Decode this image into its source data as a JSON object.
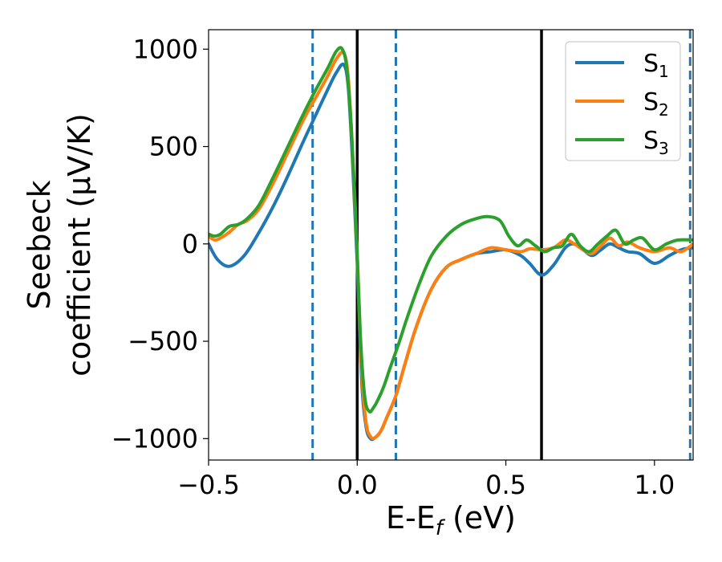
{
  "chart_data": {
    "type": "line",
    "xlabel": {
      "main": "E-E",
      "sub": "f",
      "rest": " (eV)"
    },
    "ylabel": {
      "line1": "Seebeck",
      "line2": "coefficient  (μV/K)"
    },
    "xlim": [
      -0.5,
      1.13
    ],
    "ylim": [
      -1110,
      1100
    ],
    "xticks": [
      -0.5,
      0.0,
      0.5,
      1.0
    ],
    "xtick_labels": [
      "−0.5",
      "0.0",
      "0.5",
      "1.0"
    ],
    "yticks": [
      1000,
      500,
      0,
      -500,
      -1000
    ],
    "ytick_labels": [
      "1000",
      "500",
      "0",
      "−500",
      "−1000"
    ],
    "grid": false,
    "legend_position": "top-right",
    "vlines": [
      {
        "x": -0.15,
        "style": "dashed",
        "color": "#1f77b4"
      },
      {
        "x": 0.0,
        "style": "solid",
        "color": "#000000"
      },
      {
        "x": 0.13,
        "style": "dashed",
        "color": "#1f77b4"
      },
      {
        "x": 0.62,
        "style": "solid",
        "color": "#000000"
      },
      {
        "x": 1.12,
        "style": "dashed",
        "color": "#1f77b4"
      }
    ],
    "series": [
      {
        "name": "S",
        "sub": "1",
        "color": "#1f77b4",
        "x": [
          -0.5,
          -0.47,
          -0.43,
          -0.38,
          -0.33,
          -0.28,
          -0.23,
          -0.18,
          -0.14,
          -0.1,
          -0.07,
          -0.045,
          -0.03,
          -0.015,
          0.0,
          0.015,
          0.03,
          0.045,
          0.06,
          0.08,
          0.1,
          0.13,
          0.16,
          0.2,
          0.25,
          0.3,
          0.35,
          0.4,
          0.45,
          0.5,
          0.55,
          0.58,
          0.62,
          0.66,
          0.7,
          0.73,
          0.76,
          0.79,
          0.82,
          0.85,
          0.88,
          0.91,
          0.95,
          1.0,
          1.05,
          1.09,
          1.13
        ],
        "y": [
          0,
          -80,
          -115,
          -60,
          60,
          200,
          360,
          530,
          660,
          790,
          880,
          920,
          800,
          400,
          -100,
          -700,
          -940,
          -1000,
          -995,
          -960,
          -890,
          -780,
          -620,
          -420,
          -230,
          -120,
          -80,
          -50,
          -40,
          -30,
          -60,
          -100,
          -160,
          -110,
          -20,
          0,
          -30,
          -60,
          -30,
          0,
          -20,
          -40,
          -50,
          -100,
          -60,
          -30,
          -20
        ]
      },
      {
        "name": "S",
        "sub": "2",
        "color": "#ff7f0e",
        "x": [
          -0.5,
          -0.48,
          -0.46,
          -0.43,
          -0.4,
          -0.37,
          -0.33,
          -0.28,
          -0.23,
          -0.18,
          -0.14,
          -0.1,
          -0.07,
          -0.045,
          -0.03,
          -0.015,
          0.0,
          0.015,
          0.03,
          0.045,
          0.06,
          0.08,
          0.1,
          0.13,
          0.16,
          0.2,
          0.25,
          0.3,
          0.35,
          0.4,
          0.45,
          0.5,
          0.55,
          0.58,
          0.62,
          0.66,
          0.7,
          0.73,
          0.76,
          0.79,
          0.82,
          0.85,
          0.88,
          0.91,
          0.95,
          1.0,
          1.05,
          1.09,
          1.13
        ],
        "y": [
          40,
          20,
          30,
          60,
          100,
          120,
          180,
          320,
          480,
          640,
          750,
          860,
          950,
          980,
          850,
          450,
          -50,
          -650,
          -920,
          -990,
          -995,
          -960,
          -890,
          -780,
          -620,
          -420,
          -230,
          -120,
          -80,
          -50,
          -20,
          -30,
          -40,
          -25,
          -30,
          -20,
          20,
          0,
          -30,
          -50,
          -10,
          30,
          -10,
          10,
          -20,
          -40,
          -20,
          -40,
          0
        ]
      },
      {
        "name": "S",
        "sub": "3",
        "color": "#2ca02c",
        "x": [
          -0.5,
          -0.48,
          -0.46,
          -0.43,
          -0.4,
          -0.37,
          -0.33,
          -0.28,
          -0.23,
          -0.18,
          -0.14,
          -0.1,
          -0.07,
          -0.05,
          -0.035,
          -0.02,
          -0.005,
          0.01,
          0.025,
          0.04,
          0.055,
          0.07,
          0.09,
          0.11,
          0.14,
          0.17,
          0.21,
          0.25,
          0.3,
          0.35,
          0.4,
          0.44,
          0.48,
          0.51,
          0.54,
          0.57,
          0.6,
          0.63,
          0.66,
          0.69,
          0.72,
          0.75,
          0.78,
          0.81,
          0.84,
          0.87,
          0.9,
          0.93,
          0.96,
          1.0,
          1.04,
          1.08,
          1.13
        ],
        "y": [
          50,
          40,
          50,
          90,
          100,
          130,
          200,
          350,
          510,
          670,
          790,
          900,
          990,
          1000,
          900,
          600,
          150,
          -450,
          -780,
          -860,
          -840,
          -800,
          -730,
          -640,
          -510,
          -370,
          -200,
          -60,
          40,
          100,
          130,
          140,
          120,
          40,
          -10,
          20,
          -10,
          -40,
          -20,
          -10,
          50,
          -10,
          -40,
          0,
          40,
          70,
          0,
          20,
          30,
          -30,
          0,
          20,
          20
        ]
      }
    ]
  }
}
